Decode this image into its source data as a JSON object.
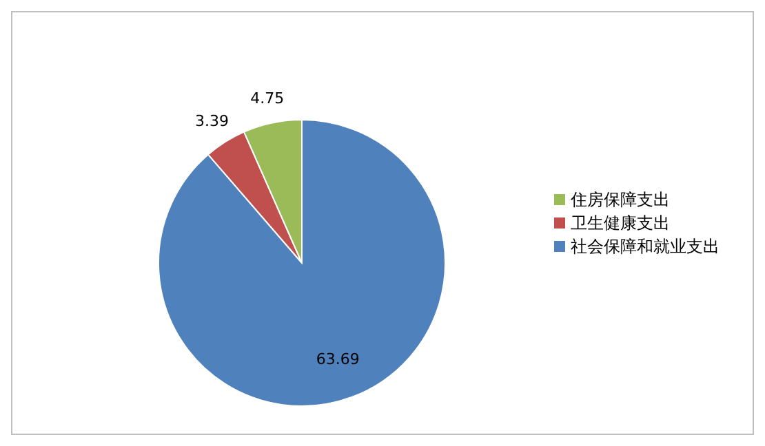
{
  "chart_data": {
    "type": "pie",
    "categories": [
      "社会保障和就业支出",
      "卫生健康支出",
      "住房保障支出"
    ],
    "values": [
      63.69,
      3.39,
      4.75
    ],
    "colors": [
      "#4f81bd",
      "#c0504d",
      "#9bbb59"
    ],
    "data_labels": true,
    "legend": "right"
  }
}
